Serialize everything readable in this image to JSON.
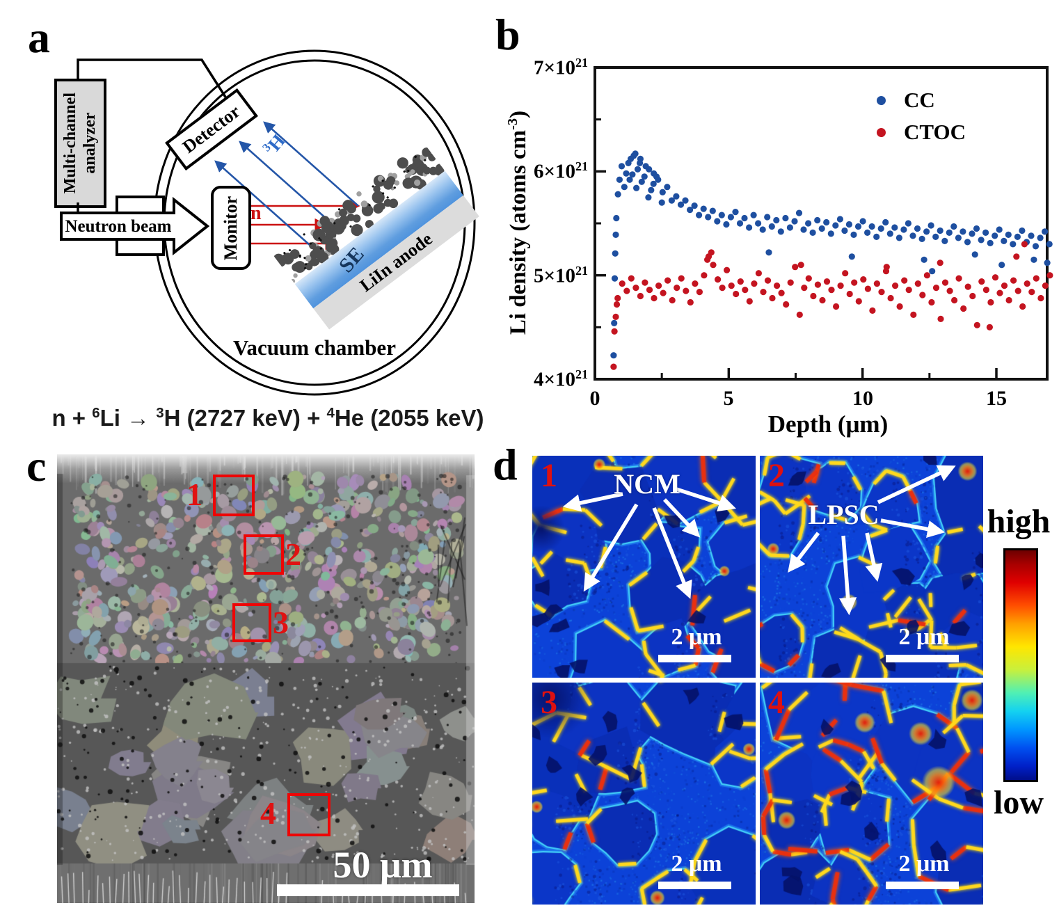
{
  "panels": {
    "a": {
      "label": "a",
      "analyzer_line1": "Multi-channel",
      "analyzer_line2": "analyzer",
      "neutron_beam": "Neutron beam",
      "monitor": "Monitor",
      "detector": "Detector",
      "n_label": "n",
      "h3_sup": "3",
      "h3_base": "H",
      "se": "SE",
      "anode": "LiIn anode",
      "chamber": "Vacuum chamber",
      "eq": {
        "p1": "n + ",
        "s1": "6",
        "p2": "Li → ",
        "s2": "3",
        "p3": "H (2727 keV) + ",
        "s3": "4",
        "p4": "He (2055 keV)"
      }
    },
    "b": {
      "label": "b",
      "ylabel_base": "Li density (atoms cm",
      "ylabel_sup": "-3",
      "ylabel_end": ")",
      "xlabel": "Depth (μm)",
      "ytick_mantissas": [
        "7",
        "6",
        "5",
        "4"
      ],
      "ytick_times": "×10",
      "ytick_exp": "21",
      "xticks": [
        "0",
        "5",
        "10",
        "15"
      ],
      "legend": [
        {
          "label": "CC",
          "color": "#1e4fa0"
        },
        {
          "label": "CTOC",
          "color": "#c41420"
        }
      ]
    },
    "c": {
      "label": "c",
      "regions": [
        "1",
        "2",
        "3",
        "4"
      ],
      "scalebar": "50 μm"
    },
    "d": {
      "label": "d",
      "regions": [
        "1",
        "2",
        "3",
        "4"
      ],
      "ncm": "NCM",
      "lpsc": "LPSC",
      "scalebar": "2 μm",
      "colorbar_high": "high",
      "colorbar_low": "low"
    }
  },
  "chart_data": {
    "type": "scatter",
    "title": "",
    "xlabel": "Depth (μm)",
    "ylabel": "Li density (atoms cm-3)",
    "y_unit": "1e21 atoms cm-3",
    "xlim": [
      0,
      17.2
    ],
    "ylim_e21": [
      4,
      7
    ],
    "x_major_ticks": [
      0,
      5,
      10,
      15
    ],
    "x_minor_ticks": [
      2.5,
      7.5,
      12.5
    ],
    "y_major_ticks_e21": [
      4,
      5,
      6,
      7
    ],
    "y_minor_ticks_e21": [
      4.5,
      5.5,
      6.5
    ],
    "grid": false,
    "legend_position": "top-right",
    "series": [
      {
        "name": "CC",
        "color": "#1e4fa0",
        "points": [
          [
            0.7,
            4.23
          ],
          [
            0.72,
            4.54
          ],
          [
            0.74,
            4.97
          ],
          [
            0.76,
            5.21
          ],
          [
            0.78,
            5.39
          ],
          [
            0.8,
            5.55
          ],
          [
            0.86,
            5.78
          ],
          [
            0.92,
            5.92
          ],
          [
            1.1,
            5.85
          ],
          [
            1.25,
            6.08
          ],
          [
            1.3,
            5.92
          ],
          [
            1.4,
            5.97
          ],
          [
            1.45,
            6.15
          ],
          [
            1.55,
            5.84
          ],
          [
            1.6,
            6.02
          ],
          [
            1.7,
            6.12
          ],
          [
            1.75,
            5.9
          ],
          [
            1.9,
            6.05
          ],
          [
            2.0,
            5.75
          ],
          [
            2.1,
            5.82
          ],
          [
            2.2,
            5.98
          ],
          [
            2.3,
            5.95
          ],
          [
            2.5,
            5.7
          ],
          [
            1.0,
            6.05
          ],
          [
            1.17,
            5.98
          ],
          [
            1.34,
            6.12
          ],
          [
            1.51,
            6.17
          ],
          [
            1.68,
            6.08
          ],
          [
            1.85,
            5.95
          ],
          [
            2.02,
            6.02
          ],
          [
            2.19,
            5.88
          ],
          [
            2.36,
            5.92
          ],
          [
            2.53,
            5.8
          ],
          [
            2.7,
            5.85
          ],
          [
            2.87,
            5.72
          ],
          [
            3.04,
            5.76
          ],
          [
            3.21,
            5.68
          ],
          [
            3.38,
            5.72
          ],
          [
            3.55,
            5.63
          ],
          [
            3.72,
            5.67
          ],
          [
            3.89,
            5.58
          ],
          [
            4.06,
            5.64
          ],
          [
            4.23,
            5.56
          ],
          [
            4.4,
            5.62
          ],
          [
            4.57,
            5.52
          ],
          [
            4.74,
            5.58
          ],
          [
            4.91,
            5.49
          ],
          [
            5.08,
            5.56
          ],
          [
            5.25,
            5.61
          ],
          [
            5.42,
            5.5
          ],
          [
            5.59,
            5.55
          ],
          [
            5.76,
            5.46
          ],
          [
            5.93,
            5.58
          ],
          [
            6.1,
            5.5
          ],
          [
            6.27,
            5.44
          ],
          [
            6.44,
            5.56
          ],
          [
            6.61,
            5.47
          ],
          [
            6.78,
            5.53
          ],
          [
            6.95,
            5.42
          ],
          [
            7.12,
            5.55
          ],
          [
            7.29,
            5.46
          ],
          [
            7.46,
            5.52
          ],
          [
            7.63,
            5.6
          ],
          [
            7.8,
            5.44
          ],
          [
            7.97,
            5.5
          ],
          [
            8.14,
            5.41
          ],
          [
            8.31,
            5.53
          ],
          [
            8.48,
            5.45
          ],
          [
            8.65,
            5.51
          ],
          [
            8.82,
            5.4
          ],
          [
            8.99,
            5.48
          ],
          [
            9.16,
            5.54
          ],
          [
            9.33,
            5.43
          ],
          [
            9.5,
            5.49
          ],
          [
            9.67,
            5.39
          ],
          [
            9.84,
            5.47
          ],
          [
            10.01,
            5.52
          ],
          [
            10.18,
            5.41
          ],
          [
            10.35,
            5.47
          ],
          [
            10.52,
            5.37
          ],
          [
            10.69,
            5.45
          ],
          [
            10.86,
            5.51
          ],
          [
            11.03,
            5.4
          ],
          [
            11.2,
            5.46
          ],
          [
            11.37,
            5.36
          ],
          [
            11.54,
            5.44
          ],
          [
            11.71,
            5.5
          ],
          [
            11.88,
            5.38
          ],
          [
            12.05,
            5.45
          ],
          [
            12.22,
            5.35
          ],
          [
            12.39,
            5.42
          ],
          [
            12.56,
            5.48
          ],
          [
            12.73,
            5.37
          ],
          [
            12.9,
            5.43
          ],
          [
            13.07,
            5.33
          ],
          [
            13.24,
            5.41
          ],
          [
            13.41,
            5.47
          ],
          [
            13.58,
            5.36
          ],
          [
            13.75,
            5.42
          ],
          [
            13.92,
            5.32
          ],
          [
            14.09,
            5.4
          ],
          [
            14.26,
            5.45
          ],
          [
            14.43,
            5.34
          ],
          [
            14.6,
            5.41
          ],
          [
            14.77,
            5.31
          ],
          [
            14.94,
            5.38
          ],
          [
            15.11,
            5.44
          ],
          [
            15.28,
            5.33
          ],
          [
            15.45,
            5.39
          ],
          [
            15.62,
            5.3
          ],
          [
            15.79,
            5.37
          ],
          [
            15.96,
            5.43
          ],
          [
            16.13,
            5.32
          ],
          [
            16.3,
            5.38
          ],
          [
            16.47,
            5.28
          ],
          [
            16.64,
            5.36
          ],
          [
            16.81,
            5.42
          ],
          [
            16.98,
            5.3
          ],
          [
            6.5,
            5.22
          ],
          [
            9.6,
            5.18
          ],
          [
            12.3,
            5.15
          ],
          [
            12.6,
            5.04
          ],
          [
            14.2,
            5.2
          ],
          [
            15.2,
            5.1
          ],
          [
            16.4,
            5.15
          ],
          [
            16.9,
            5.12
          ]
        ]
      },
      {
        "name": "CTOC",
        "color": "#c41420",
        "points": [
          [
            0.7,
            4.12
          ],
          [
            0.73,
            4.46
          ],
          [
            0.78,
            4.6
          ],
          [
            0.82,
            4.72
          ],
          [
            0.85,
            4.78
          ],
          [
            1.02,
            4.92
          ],
          [
            1.19,
            4.85
          ],
          [
            1.36,
            4.97
          ],
          [
            1.53,
            4.88
          ],
          [
            1.7,
            4.8
          ],
          [
            1.87,
            4.93
          ],
          [
            2.04,
            4.86
          ],
          [
            2.21,
            4.78
          ],
          [
            2.38,
            4.9
          ],
          [
            2.55,
            4.83
          ],
          [
            2.72,
            4.95
          ],
          [
            2.89,
            4.76
          ],
          [
            3.06,
            4.88
          ],
          [
            3.23,
            4.97
          ],
          [
            3.4,
            4.85
          ],
          [
            3.57,
            4.74
          ],
          [
            3.74,
            4.92
          ],
          [
            3.91,
            4.84
          ],
          [
            4.08,
            5.0
          ],
          [
            4.25,
            5.18
          ],
          [
            4.42,
            5.1
          ],
          [
            4.59,
            4.96
          ],
          [
            4.76,
            4.88
          ],
          [
            4.93,
            5.05
          ],
          [
            5.1,
            4.9
          ],
          [
            5.27,
            4.82
          ],
          [
            5.44,
            4.94
          ],
          [
            5.61,
            4.86
          ],
          [
            5.78,
            4.75
          ],
          [
            5.95,
            4.92
          ],
          [
            6.12,
            5.02
          ],
          [
            6.29,
            4.84
          ],
          [
            6.46,
            4.95
          ],
          [
            6.63,
            4.78
          ],
          [
            6.8,
            4.9
          ],
          [
            6.97,
            4.83
          ],
          [
            7.14,
            4.72
          ],
          [
            7.31,
            4.93
          ],
          [
            7.48,
            5.08
          ],
          [
            7.65,
            4.62
          ],
          [
            7.82,
            4.88
          ],
          [
            7.99,
            4.97
          ],
          [
            8.16,
            4.8
          ],
          [
            8.33,
            4.91
          ],
          [
            8.5,
            4.76
          ],
          [
            8.67,
            4.94
          ],
          [
            8.84,
            4.86
          ],
          [
            9.01,
            4.7
          ],
          [
            9.18,
            4.9
          ],
          [
            9.35,
            5.02
          ],
          [
            9.52,
            4.82
          ],
          [
            9.69,
            4.93
          ],
          [
            9.86,
            4.75
          ],
          [
            10.03,
            4.96
          ],
          [
            10.2,
            4.87
          ],
          [
            10.37,
            4.66
          ],
          [
            10.54,
            4.92
          ],
          [
            10.71,
            4.84
          ],
          [
            10.88,
            5.04
          ],
          [
            11.05,
            4.78
          ],
          [
            11.22,
            4.9
          ],
          [
            11.39,
            4.7
          ],
          [
            11.56,
            4.95
          ],
          [
            11.73,
            4.86
          ],
          [
            11.9,
            4.62
          ],
          [
            12.07,
            4.92
          ],
          [
            12.24,
            4.81
          ],
          [
            12.41,
            5.0
          ],
          [
            12.58,
            4.74
          ],
          [
            12.75,
            4.88
          ],
          [
            12.92,
            4.58
          ],
          [
            13.09,
            4.93
          ],
          [
            13.26,
            4.85
          ],
          [
            13.43,
            4.76
          ],
          [
            13.6,
            4.97
          ],
          [
            13.77,
            4.68
          ],
          [
            13.94,
            4.89
          ],
          [
            14.11,
            4.8
          ],
          [
            14.28,
            4.52
          ],
          [
            14.45,
            4.94
          ],
          [
            14.62,
            4.86
          ],
          [
            14.79,
            4.74
          ],
          [
            14.96,
            4.98
          ],
          [
            15.13,
            4.83
          ],
          [
            15.3,
            4.9
          ],
          [
            15.47,
            4.76
          ],
          [
            15.64,
            4.95
          ],
          [
            15.81,
            4.85
          ],
          [
            15.98,
            4.7
          ],
          [
            16.15,
            4.92
          ],
          [
            16.32,
            4.84
          ],
          [
            16.49,
            4.97
          ],
          [
            16.66,
            4.78
          ],
          [
            16.83,
            4.9
          ],
          [
            17.0,
            5.0
          ],
          [
            16.05,
            5.3
          ],
          [
            4.35,
            5.22
          ],
          [
            4.2,
            5.15
          ],
          [
            7.7,
            5.1
          ],
          [
            10.9,
            5.08
          ],
          [
            12.9,
            5.12
          ],
          [
            14.75,
            4.5
          ],
          [
            15.75,
            5.18
          ]
        ]
      }
    ]
  }
}
